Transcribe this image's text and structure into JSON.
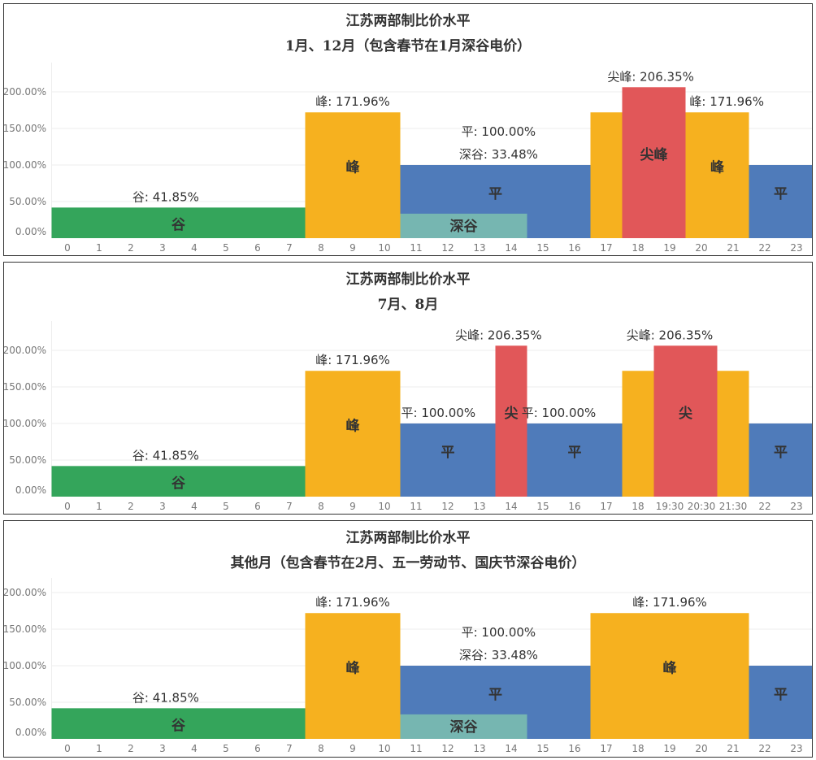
{
  "colors": {
    "谷": "#34a55b",
    "峰": "#f6b11f",
    "平": "#4f7bba",
    "尖": "#e15759",
    "深谷": "#76b6b1"
  },
  "chart_data": [
    {
      "type": "bar",
      "title": "江苏两部制比价水平",
      "subtitle": "1月、12月（包含春节在1月深谷电价）",
      "yticks": [
        "0.00%",
        "50.00%",
        "100.00%",
        "150.00%",
        "200.00%"
      ],
      "ytick_values": [
        0,
        50,
        100,
        150,
        200
      ],
      "ylim": [
        0,
        240
      ],
      "xticks": [
        "0",
        "1",
        "2",
        "3",
        "4",
        "5",
        "6",
        "7",
        "8",
        "9",
        "10",
        "11",
        "12",
        "13",
        "14",
        "15",
        "16",
        "17",
        "18",
        "19",
        "20",
        "21",
        "22",
        "23"
      ],
      "segments": [
        {
          "from": 0,
          "to": 8,
          "value": 41.85,
          "type": "谷",
          "label": "谷"
        },
        {
          "from": 8,
          "to": 11,
          "value": 171.96,
          "type": "峰",
          "label": "峰"
        },
        {
          "from": 11,
          "to": 17,
          "value": 100.0,
          "type": "平",
          "label": "平"
        },
        {
          "from": 11,
          "to": 15,
          "value": 33.48,
          "type": "深谷",
          "label": "深谷"
        },
        {
          "from": 17,
          "to": 18,
          "value": 171.96,
          "type": "峰",
          "label": ""
        },
        {
          "from": 18,
          "to": 20,
          "value": 206.35,
          "type": "尖",
          "label": "尖峰"
        },
        {
          "from": 20,
          "to": 22,
          "value": 171.96,
          "type": "峰",
          "label": "峰"
        },
        {
          "from": 22,
          "to": 24,
          "value": 100.0,
          "type": "平",
          "label": "平"
        }
      ],
      "annotations": [
        {
          "text": "谷: 41.85%",
          "at": 3.6,
          "value": 41.85,
          "stack": 0
        },
        {
          "text": "峰: 171.96%",
          "at": 9.5,
          "value": 171.96,
          "stack": 0
        },
        {
          "text": "平: 100.00%",
          "at": 14.1,
          "value": 100.0,
          "stack": 1
        },
        {
          "text": "深谷: 33.48%",
          "at": 14.1,
          "value": 100.0,
          "stack": 0
        },
        {
          "text": "尖峰: 206.35%",
          "at": 18.9,
          "value": 206.35,
          "stack": 0
        },
        {
          "text": "峰: 171.96%",
          "at": 21.3,
          "value": 171.96,
          "stack": 0
        }
      ]
    },
    {
      "type": "bar",
      "title": "江苏两部制比价水平",
      "subtitle": "7月、8月",
      "yticks": [
        "0.00%",
        "50.00%",
        "100.00%",
        "150.00%",
        "200.00%"
      ],
      "ytick_values": [
        0,
        50,
        100,
        150,
        200
      ],
      "ylim": [
        0,
        240
      ],
      "xticks": [
        "0",
        "1",
        "2",
        "3",
        "4",
        "5",
        "6",
        "7",
        "8",
        "9",
        "10",
        "11",
        "12",
        "13",
        "14",
        "15",
        "16",
        "17",
        "18",
        "19:30",
        "20:30",
        "21:30",
        "22",
        "23"
      ],
      "segments": [
        {
          "from": 0,
          "to": 8,
          "value": 41.85,
          "type": "谷",
          "label": "谷"
        },
        {
          "from": 8,
          "to": 11,
          "value": 171.96,
          "type": "峰",
          "label": "峰"
        },
        {
          "from": 11,
          "to": 14,
          "value": 100.0,
          "type": "平",
          "label": "平"
        },
        {
          "from": 14,
          "to": 15,
          "value": 206.35,
          "type": "尖",
          "label": "尖"
        },
        {
          "from": 15,
          "to": 18,
          "value": 100.0,
          "type": "平",
          "label": "平"
        },
        {
          "from": 18,
          "to": 19,
          "value": 171.96,
          "type": "峰",
          "label": ""
        },
        {
          "from": 19,
          "to": 21,
          "value": 206.35,
          "type": "尖",
          "label": "尖"
        },
        {
          "from": 21,
          "to": 22,
          "value": 171.96,
          "type": "峰",
          "label": ""
        },
        {
          "from": 22,
          "to": 24,
          "value": 100.0,
          "type": "平",
          "label": "平"
        }
      ],
      "annotations": [
        {
          "text": "谷: 41.85%",
          "at": 3.6,
          "value": 41.85,
          "stack": 0
        },
        {
          "text": "峰: 171.96%",
          "at": 9.5,
          "value": 171.96,
          "stack": 0
        },
        {
          "text": "平: 100.00%",
          "at": 12.2,
          "value": 100.0,
          "stack": 0
        },
        {
          "text": "尖峰: 206.35%",
          "at": 14.1,
          "value": 206.35,
          "stack": 0
        },
        {
          "text": "平: 100.00%",
          "at": 16.0,
          "value": 100.0,
          "stack": 0
        },
        {
          "text": "尖峰: 206.35%",
          "at": 19.5,
          "value": 206.35,
          "stack": 0
        }
      ]
    },
    {
      "type": "bar",
      "title": "江苏两部制比价水平",
      "subtitle": "其他月（包含春节在2月、五一劳动节、国庆节深谷电价）",
      "yticks": [
        "0.00%",
        "50.00%",
        "100.00%",
        "150.00%",
        "200.00%"
      ],
      "ytick_values": [
        0,
        50,
        100,
        150,
        200
      ],
      "ylim": [
        0,
        220
      ],
      "xticks": [
        "0",
        "1",
        "2",
        "3",
        "4",
        "5",
        "6",
        "7",
        "8",
        "9",
        "10",
        "11",
        "12",
        "13",
        "14",
        "15",
        "16",
        "17",
        "18",
        "19",
        "20",
        "21",
        "22",
        "23"
      ],
      "segments": [
        {
          "from": 0,
          "to": 8,
          "value": 41.85,
          "type": "谷",
          "label": "谷"
        },
        {
          "from": 8,
          "to": 11,
          "value": 171.96,
          "type": "峰",
          "label": "峰"
        },
        {
          "from": 11,
          "to": 17,
          "value": 100.0,
          "type": "平",
          "label": "平"
        },
        {
          "from": 11,
          "to": 15,
          "value": 33.48,
          "type": "深谷",
          "label": "深谷"
        },
        {
          "from": 17,
          "to": 22,
          "value": 171.96,
          "type": "峰",
          "label": "峰"
        },
        {
          "from": 22,
          "to": 24,
          "value": 100.0,
          "type": "平",
          "label": "平"
        }
      ],
      "annotations": [
        {
          "text": "谷: 41.85%",
          "at": 3.6,
          "value": 41.85,
          "stack": 0
        },
        {
          "text": "峰: 171.96%",
          "at": 9.5,
          "value": 171.96,
          "stack": 0
        },
        {
          "text": "平: 100.00%",
          "at": 14.1,
          "value": 100.0,
          "stack": 1
        },
        {
          "text": "深谷: 33.48%",
          "at": 14.1,
          "value": 100.0,
          "stack": 0
        },
        {
          "text": "峰: 171.96%",
          "at": 19.5,
          "value": 171.96,
          "stack": 0
        }
      ]
    }
  ]
}
